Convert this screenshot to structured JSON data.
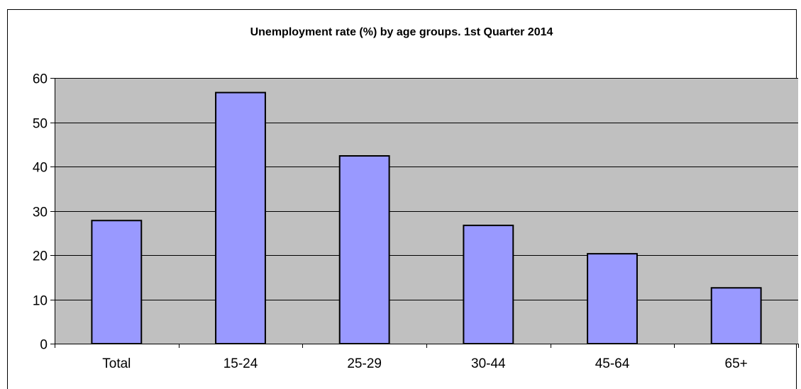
{
  "chart_data": {
    "type": "bar",
    "title": "Unemployment rate (%) by age groups. 1st Quarter 2014",
    "xlabel": "",
    "ylabel": "",
    "categories": [
      "Total",
      "15-24",
      "25-29",
      "30-44",
      "45-64",
      "65+"
    ],
    "values": [
      27.8,
      56.7,
      42.4,
      26.7,
      20.3,
      12.6
    ],
    "ylim": [
      0,
      60
    ],
    "yticks": [
      0,
      10,
      20,
      30,
      40,
      50,
      60
    ],
    "ytick_labels": [
      "0",
      "10",
      "20",
      "30",
      "40",
      "50",
      "60"
    ],
    "grid": "horizontal",
    "legend": "none",
    "colors": {
      "bar_fill": "#9999ff",
      "bar_stroke": "#000000",
      "plot_background": "#c0c0c0",
      "gridline": "#000000",
      "frame": "#000000"
    }
  }
}
